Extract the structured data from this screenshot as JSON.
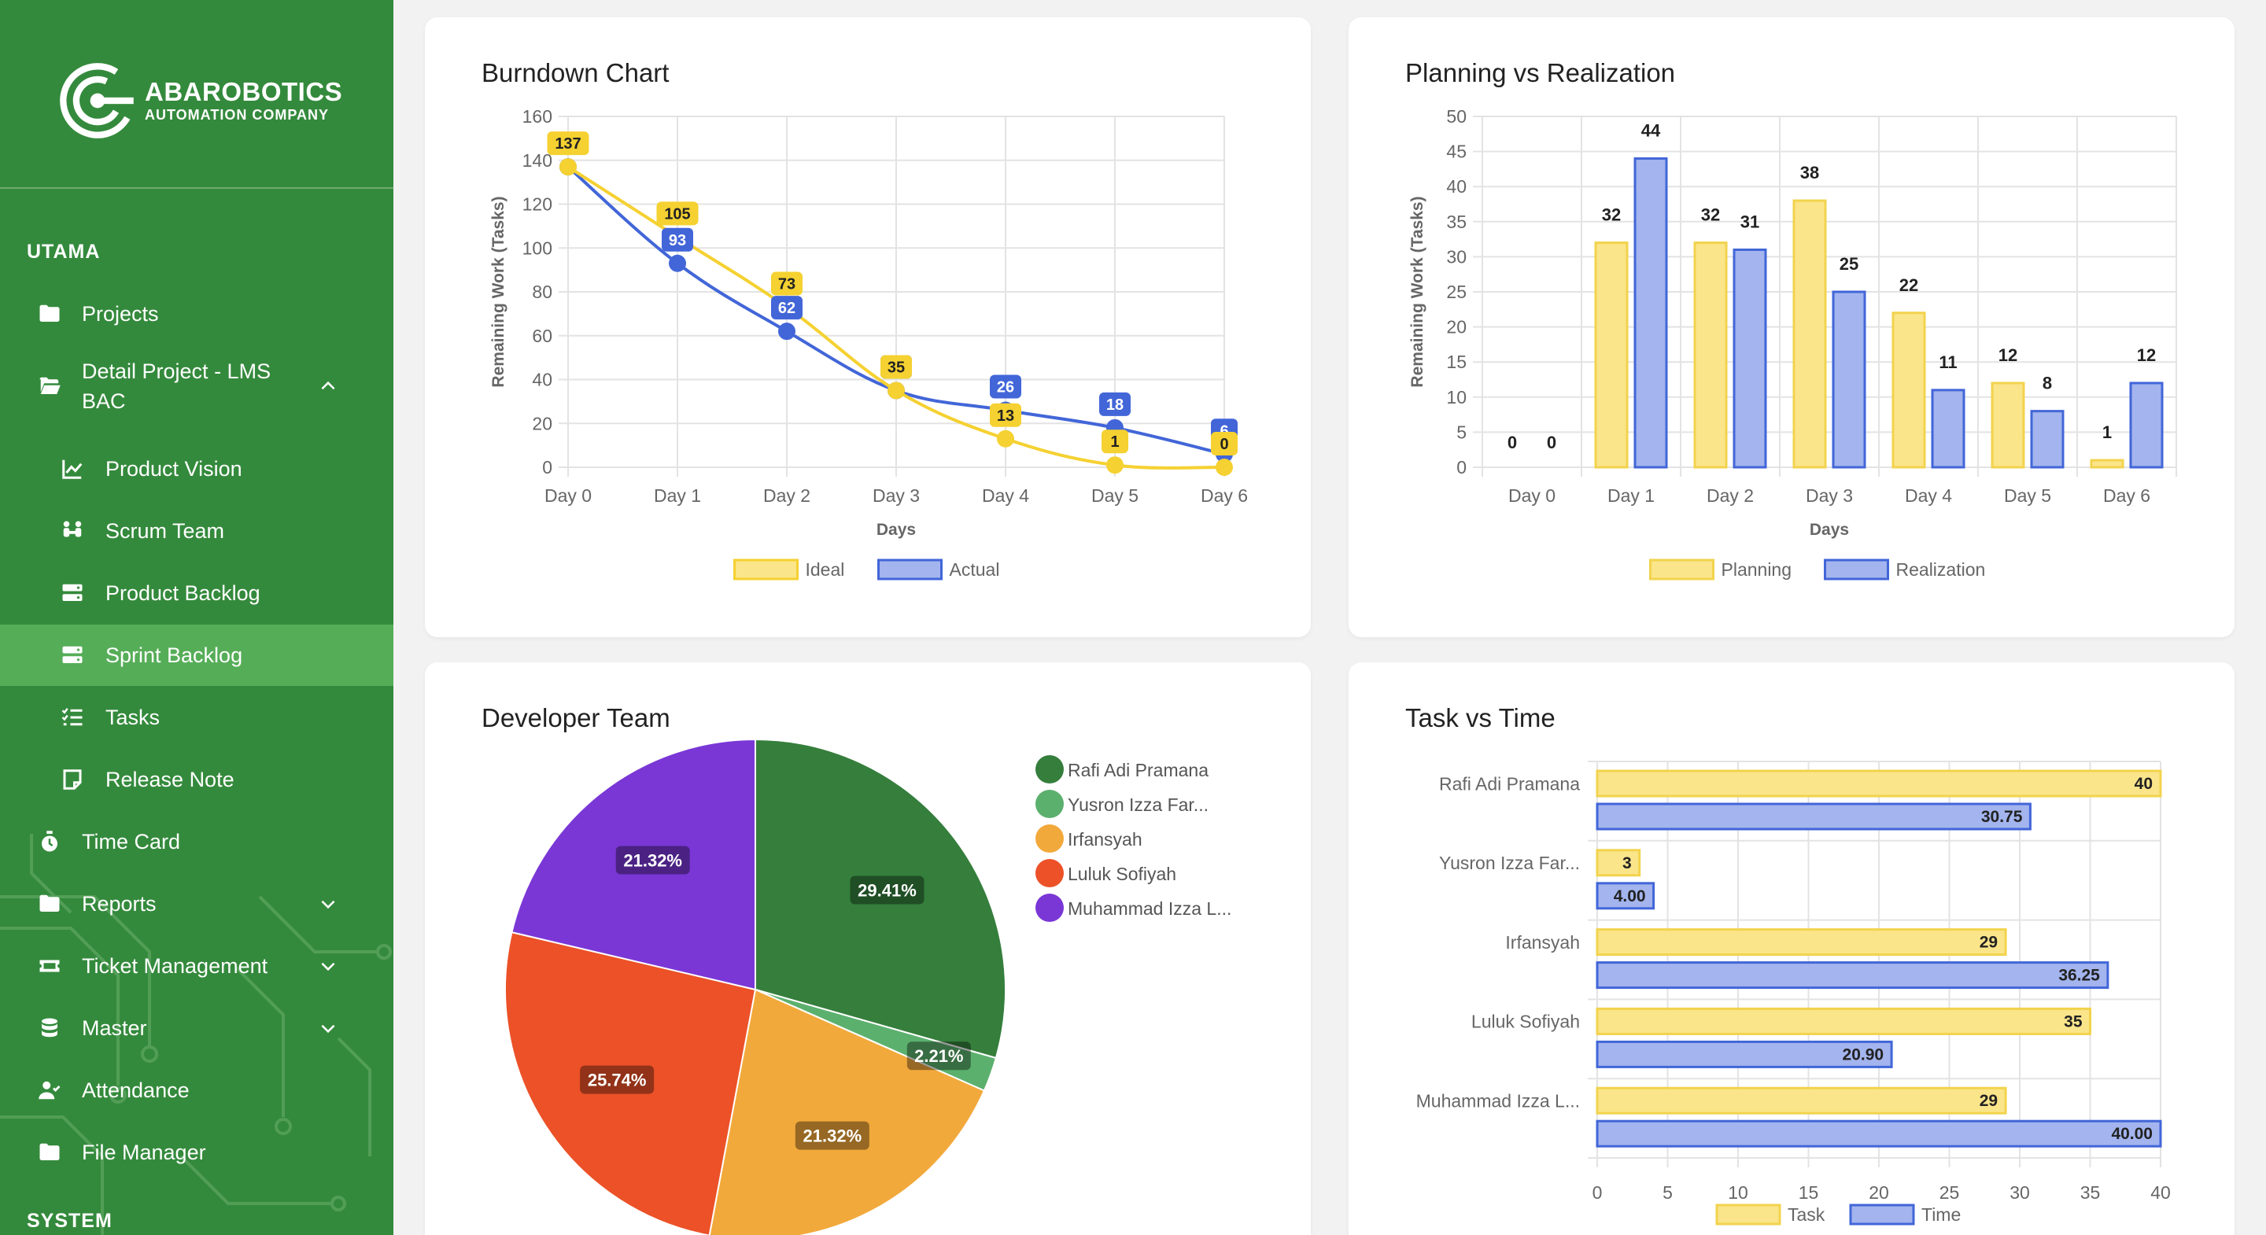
{
  "sidebar": {
    "brand": "ABAROBOTICS",
    "tagline": "AUTOMATION COMPANY",
    "sections": {
      "main": "UTAMA",
      "system": "SYSTEM"
    },
    "items": {
      "projects": "Projects",
      "detail_project": "Detail Project - LMS BAC",
      "product_vision": "Product Vision",
      "scrum_team": "Scrum Team",
      "product_backlog": "Product Backlog",
      "sprint_backlog": "Sprint Backlog",
      "tasks": "Tasks",
      "release_note": "Release Note",
      "time_card": "Time Card",
      "reports": "Reports",
      "ticket_management": "Ticket Management",
      "master": "Master",
      "attendance": "Attendance",
      "file_manager": "File Manager"
    },
    "active_item": "sprint_backlog",
    "colors": {
      "background": "#348a3c",
      "active": "#56ad58"
    }
  },
  "chart_data": [
    {
      "id": "burndown",
      "type": "line",
      "title": "Burndown Chart",
      "xlabel": "Days",
      "ylabel": "Remaining Work (Tasks)",
      "categories": [
        "Day 0",
        "Day 1",
        "Day 2",
        "Day 3",
        "Day 4",
        "Day 5",
        "Day 6"
      ],
      "ylim": [
        0,
        160
      ],
      "yticks": [
        0,
        20,
        40,
        60,
        80,
        100,
        120,
        140,
        160
      ],
      "series": [
        {
          "name": "Ideal",
          "values": [
            137,
            105,
            73,
            35,
            13,
            1,
            0
          ],
          "color": "#f5d131",
          "fill": "#fbe58a"
        },
        {
          "name": "Actual",
          "values": [
            137,
            93,
            62,
            35,
            26,
            18,
            6
          ],
          "color": "#4266d8",
          "fill": "#a3b4ee"
        }
      ]
    },
    {
      "id": "planning",
      "type": "bar",
      "title": "Planning vs Realization",
      "xlabel": "Days",
      "ylabel": "Remaining Work (Tasks)",
      "categories": [
        "Day 0",
        "Day 1",
        "Day 2",
        "Day 3",
        "Day 4",
        "Day 5",
        "Day 6"
      ],
      "ylim": [
        0,
        50
      ],
      "yticks": [
        0,
        5,
        10,
        15,
        20,
        25,
        30,
        35,
        40,
        45,
        50
      ],
      "series": [
        {
          "name": "Planning",
          "values": [
            0,
            32,
            32,
            38,
            22,
            12,
            1
          ],
          "color": "#f2d34d",
          "fill": "#fbe58a"
        },
        {
          "name": "Realization",
          "values": [
            0,
            44,
            31,
            25,
            11,
            8,
            12
          ],
          "color": "#4266d8",
          "fill": "#a3b4ee"
        }
      ]
    },
    {
      "id": "devteam",
      "type": "pie",
      "title": "Developer Team",
      "slices": [
        {
          "label": "Rafi Adi Pramana",
          "value": 29.41,
          "display": "29.41%",
          "color": "#357e3c"
        },
        {
          "label": "Yusron Izza Far...",
          "value": 2.21,
          "display": "2.21%",
          "color": "#5bb06d"
        },
        {
          "label": "Irfansyah",
          "value": 21.32,
          "display": "21.32%",
          "color": "#f2a93b"
        },
        {
          "label": "Luluk Sofiyah",
          "value": 25.74,
          "display": "25.74%",
          "color": "#ec5128"
        },
        {
          "label": "Muhammad Izza L...",
          "value": 21.32,
          "display": "21.32%",
          "color": "#7a37d6"
        }
      ]
    },
    {
      "id": "tasktime",
      "type": "bar",
      "orientation": "horizontal",
      "title": "Task vs Time",
      "categories": [
        "Rafi Adi Pramana",
        "Yusron Izza Far...",
        "Irfansyah",
        "Luluk Sofiyah",
        "Muhammad Izza L..."
      ],
      "xlim": [
        0,
        40
      ],
      "xticks": [
        0,
        5,
        10,
        15,
        20,
        25,
        30,
        35,
        40
      ],
      "series": [
        {
          "name": "Task",
          "values": [
            40,
            3,
            29,
            35,
            29
          ],
          "labels": [
            "40",
            "3",
            "29",
            "35",
            "29"
          ],
          "color": "#f2d34d",
          "fill": "#fbe58a"
        },
        {
          "name": "Time",
          "values": [
            30.75,
            4.0,
            36.25,
            20.9,
            40.0
          ],
          "labels": [
            "30.75",
            "4.00",
            "36.25",
            "20.90",
            "40.00"
          ],
          "color": "#4266d8",
          "fill": "#a3b4ee"
        }
      ]
    }
  ]
}
